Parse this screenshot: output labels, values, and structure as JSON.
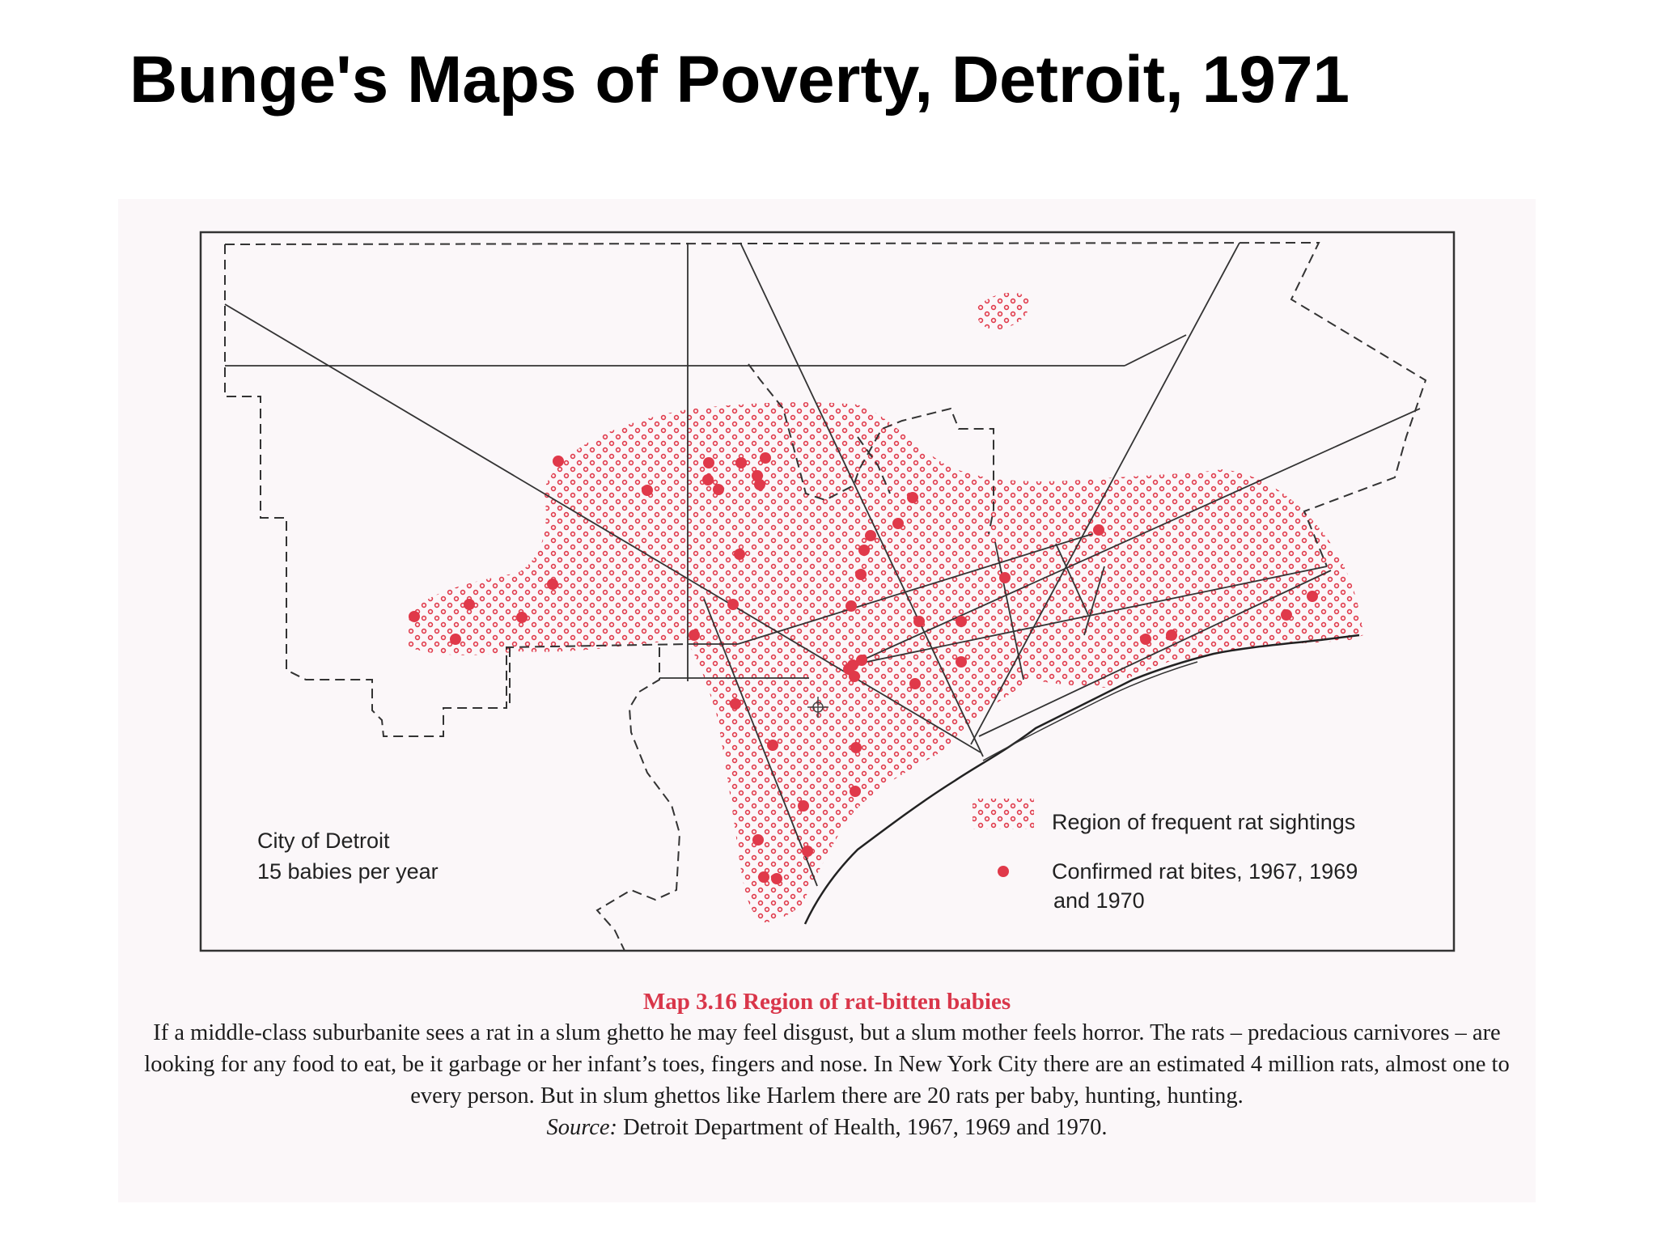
{
  "slide": {
    "title": "Bunge's Maps of Poverty, Detroit, 1971"
  },
  "map": {
    "city_label_line1": "City of Detroit",
    "city_label_line2": "15 babies per year",
    "legend": {
      "region_label": "Region of frequent rat sightings",
      "bites_label_line1": "Confirmed rat bites, 1967, 1969",
      "bites_label_line2": "and 1970"
    },
    "colors": {
      "rat_region": "#e0394a",
      "rat_bite": "#e0394a",
      "lines": "#333333",
      "background": "#fbf7f9"
    }
  },
  "caption": {
    "title": "Map 3.16 Region of rat-bitten babies",
    "text": "If a middle-class suburbanite sees a rat in a slum ghetto he may feel disgust, but a slum mother feels horror. The rats – predacious carnivores – are looking for any food to eat, be it garbage or her infant’s toes, fingers and nose. In New York City there are an estimated 4 million rats, almost one to every person. But in slum ghettos like Harlem there are 20 rats per baby, hunting, hunting.",
    "source_label": "Source:",
    "source_text": "Detroit Department of Health, 1967, 1969 and 1970."
  }
}
